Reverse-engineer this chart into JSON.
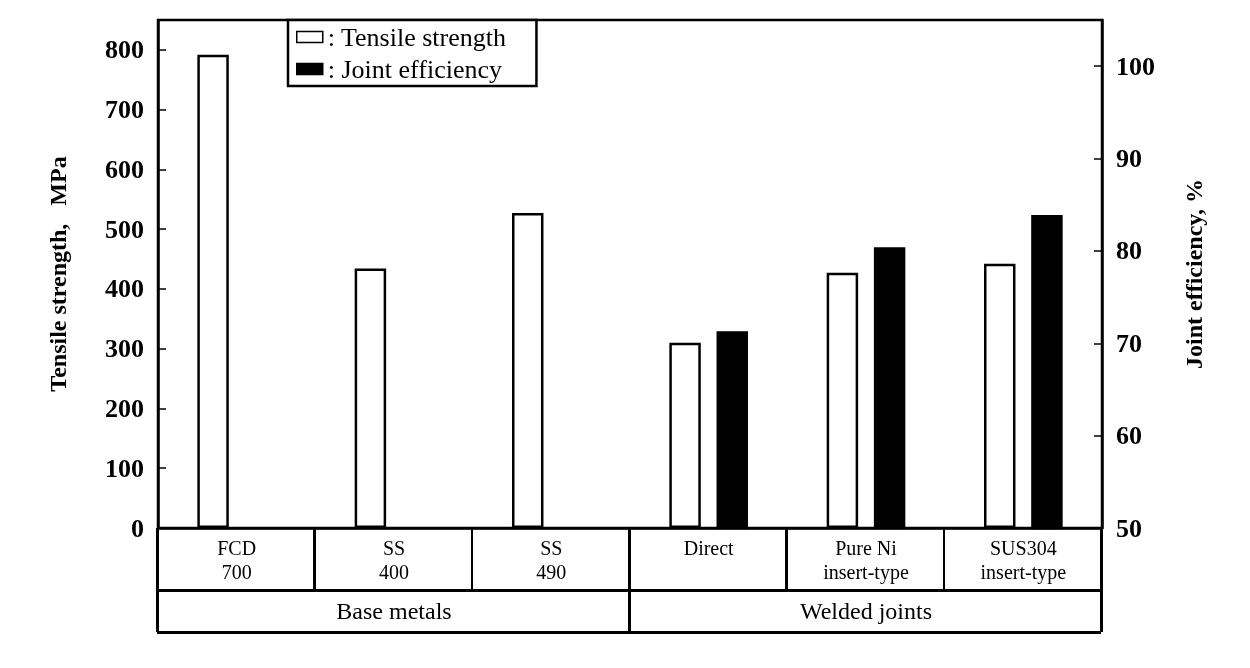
{
  "chart_data": {
    "type": "bar",
    "ylabel": "Tensile strength,   MPa",
    "y2label": "Joint efficiency, %",
    "categories": [
      "FCD\n700",
      "SS\n400",
      "SS\n490",
      "Direct",
      "Pure Ni\ninsert-type",
      "SUS304\ninsert-type"
    ],
    "series": [
      {
        "name": ": Tensile strength",
        "color": "#ffffff",
        "values": [
          792,
          434,
          527,
          310,
          427,
          442
        ]
      },
      {
        "name": ": Joint efficiency",
        "color": "#000000",
        "axis": "y2",
        "values": [
          null,
          null,
          null,
          71.3,
          80.4,
          83.9
        ]
      }
    ],
    "ylim": [
      0,
      850
    ],
    "yticks": [
      0,
      100,
      200,
      300,
      400,
      500,
      600,
      700,
      800
    ],
    "y2lim": [
      50,
      105
    ],
    "y2ticks": [
      50,
      60,
      70,
      80,
      90,
      100
    ],
    "annotations": [
      "Base metals",
      "Welded joints"
    ],
    "legend": "top",
    "grid": false
  }
}
